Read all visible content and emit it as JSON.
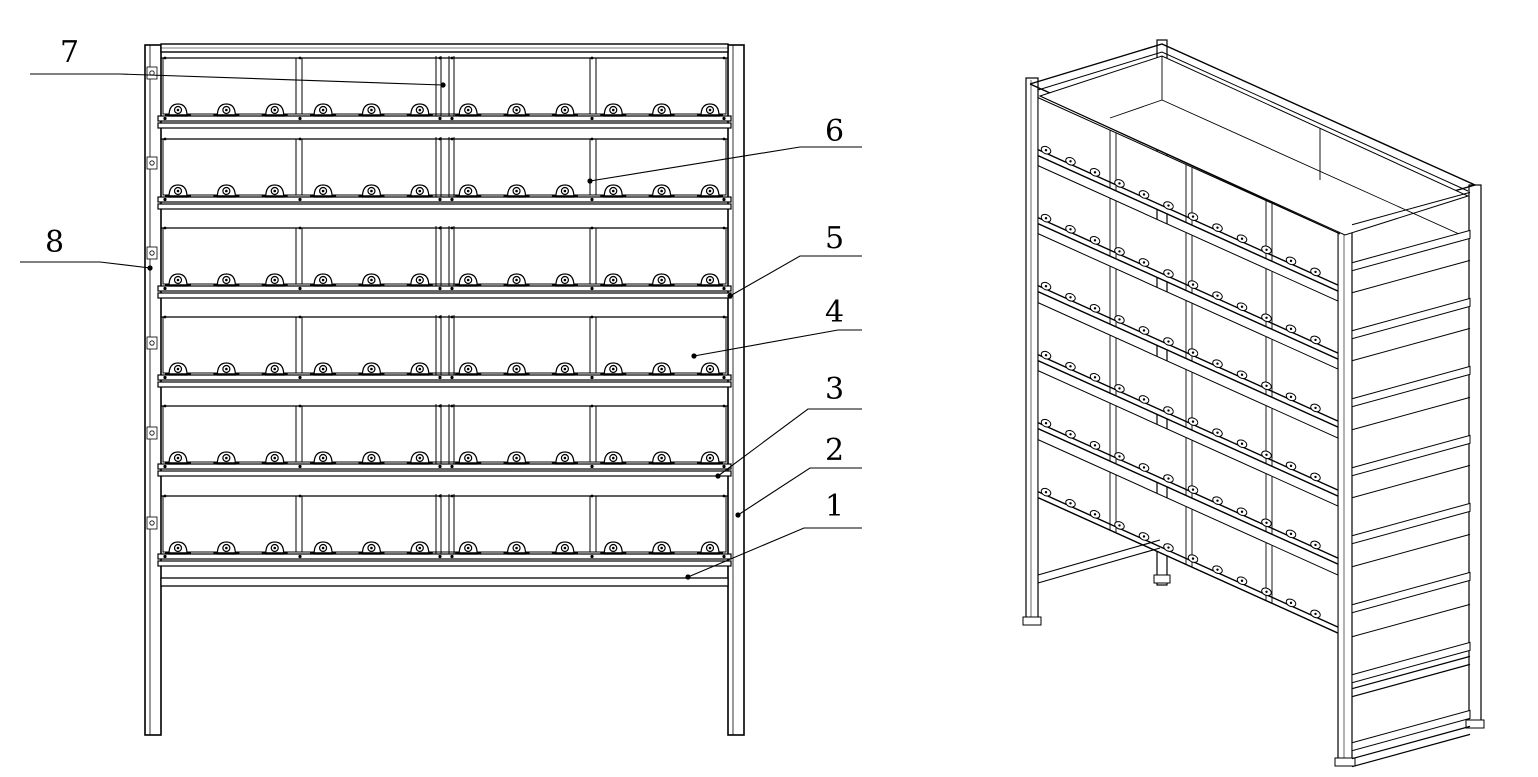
{
  "figure": {
    "type": "engineering-drawing",
    "views": [
      "front-view",
      "isometric-view"
    ],
    "stroke_color": "#000000",
    "background_color": "#ffffff"
  },
  "rack": {
    "tiers": 6,
    "battery_columns_per_tier": 4,
    "wheels_per_tier": 12
  },
  "callouts": [
    {
      "id": "callout-7",
      "label": "7"
    },
    {
      "id": "callout-6",
      "label": "6"
    },
    {
      "id": "callout-8",
      "label": "8"
    },
    {
      "id": "callout-5",
      "label": "5"
    },
    {
      "id": "callout-4",
      "label": "4"
    },
    {
      "id": "callout-3",
      "label": "3"
    },
    {
      "id": "callout-2",
      "label": "2"
    },
    {
      "id": "callout-1",
      "label": "1"
    }
  ]
}
